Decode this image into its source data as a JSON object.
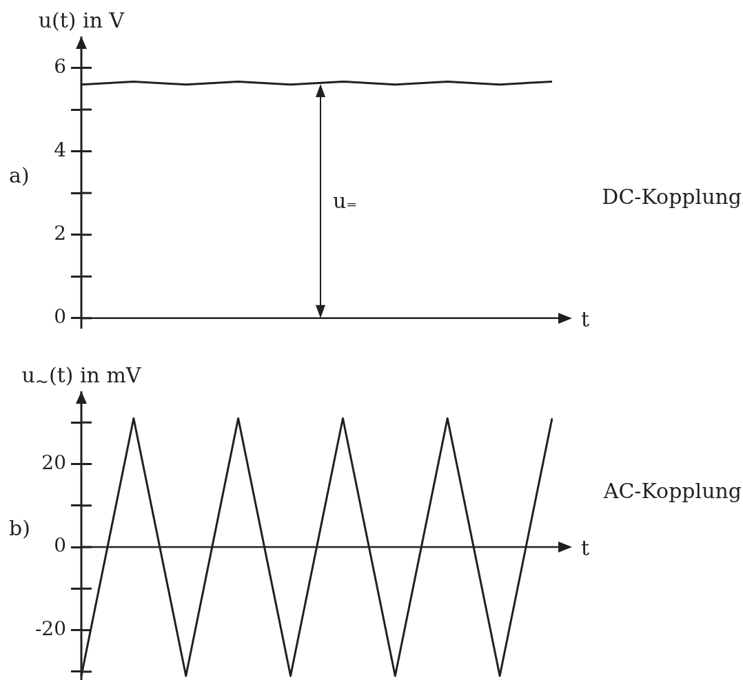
{
  "chart_data": [
    {
      "type": "line",
      "ylabel": "u(t) in V",
      "xlabel": "t",
      "annotations": [
        "a)",
        "DC-Kopplung",
        "u₌"
      ],
      "categories": [
        null,
        null,
        null,
        null,
        null,
        null,
        null,
        null,
        null,
        null
      ],
      "series": [
        {
          "color": "#231f20",
          "values": [
            5.6,
            5.67,
            5.6,
            5.67,
            5.6,
            5.67,
            5.6,
            5.67,
            5.6,
            5.67
          ]
        }
      ],
      "ylim": [
        -0.25,
        6.75
      ],
      "yticks": [
        0,
        {
          "value": 1,
          "label": null
        },
        2,
        {
          "value": 3,
          "label": null
        },
        4,
        {
          "value": 5,
          "label": null
        },
        6
      ]
    },
    {
      "type": "line",
      "ylabel": "u$_{~}$(t) in mV",
      "xlabel": "t",
      "annotations": [
        "b)",
        "AC-Kopplung"
      ],
      "categories": [
        null,
        null,
        null,
        null,
        null,
        null,
        null,
        null,
        null,
        null
      ],
      "series": [
        {
          "color": "#231f20",
          "values": [
            -31,
            31,
            -31,
            31,
            -31,
            31,
            -31,
            31,
            -31,
            31
          ]
        }
      ],
      "ylim": [
        -32,
        37.5
      ],
      "yticks": [
        {
          "value": -30,
          "label": null
        },
        -20,
        {
          "value": -10,
          "label": null
        },
        0,
        {
          "value": 10,
          "label": null
        },
        20,
        {
          "value": 30,
          "label": null
        }
      ]
    }
  ]
}
